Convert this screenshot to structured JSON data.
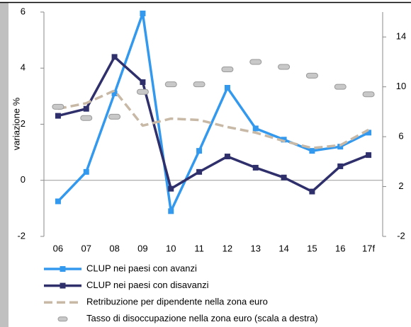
{
  "chart_data": {
    "type": "line",
    "y_label": "variazione %",
    "categories": [
      "06",
      "07",
      "08",
      "09",
      "10",
      "11",
      "12",
      "13",
      "14",
      "15",
      "16",
      "17f"
    ],
    "ylim": [
      -2,
      6
    ],
    "yticks": [
      -2,
      0,
      2,
      4,
      6
    ],
    "y2lim": [
      -2,
      16
    ],
    "y2ticks": [
      -2,
      2,
      6,
      10,
      14
    ],
    "series": [
      {
        "name": "CLUP nei paesi con avanzi",
        "color": "#3399ee",
        "marker": "square",
        "dash": false,
        "values": [
          -0.75,
          0.3,
          3.1,
          5.95,
          -1.1,
          1.05,
          3.3,
          1.85,
          1.45,
          1.05,
          1.2,
          1.7
        ]
      },
      {
        "name": "CLUP nei paesi con disavanzi",
        "color": "#2e2f6b",
        "marker": "square",
        "dash": false,
        "values": [
          2.3,
          2.55,
          4.4,
          3.5,
          -0.3,
          0.3,
          0.85,
          0.45,
          0.1,
          -0.4,
          0.5,
          0.9
        ]
      },
      {
        "name": "Retribuzione per dipendente nella zona euro",
        "color": "#c8b9a6",
        "marker": "none",
        "dash": true,
        "values": [
          2.55,
          2.75,
          3.2,
          1.95,
          2.2,
          2.15,
          1.9,
          1.7,
          1.4,
          1.15,
          1.25,
          1.8
        ]
      },
      {
        "name": "Tasso di disoccupazione nella zona euro (scala a destra)",
        "color": "#c8c8c8",
        "marker": "pill",
        "dash": false,
        "line": false,
        "axis": "y2",
        "values": [
          8.4,
          7.5,
          7.6,
          9.6,
          10.2,
          10.2,
          11.4,
          12.0,
          11.6,
          10.9,
          10.0,
          9.4
        ]
      }
    ]
  }
}
